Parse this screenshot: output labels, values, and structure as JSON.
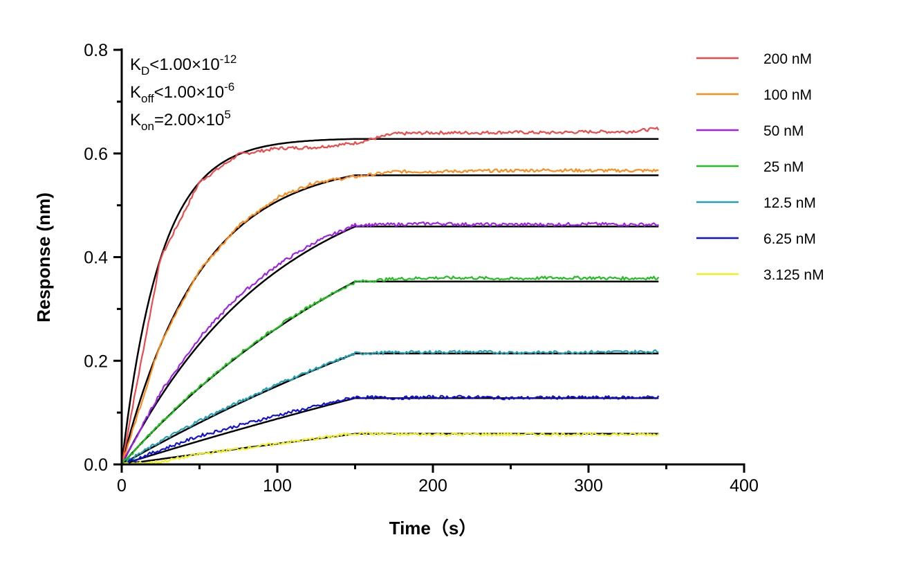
{
  "chart_data": {
    "type": "line",
    "xlabel": "Time（s）",
    "ylabel": "Response (nm)",
    "xlim": [
      0,
      400
    ],
    "ylim": [
      0,
      0.8
    ],
    "xticks": [
      "0",
      "100",
      "200",
      "300",
      "400"
    ],
    "yticks": [
      "0.0",
      "0.2",
      "0.4",
      "0.6",
      "0.8"
    ],
    "grid": false,
    "legend_position": "right",
    "annotations": {
      "kd": {
        "base": "K",
        "sub": "D",
        "rel": "<1.00×10",
        "exp": "-12"
      },
      "koff": {
        "base": "K",
        "sub": "off",
        "rel": "<1.00×10",
        "exp": "-6"
      },
      "kon": {
        "base": "K",
        "sub": "on",
        "rel": "=2.00×10",
        "exp": "5"
      }
    },
    "fit": {
      "kon": 200000,
      "koff": 1e-06,
      "association_end": 150,
      "end": 345,
      "color": "#000000"
    },
    "x": [
      0,
      25,
      50,
      75,
      100,
      125,
      150,
      175,
      200,
      225,
      250,
      275,
      300,
      325,
      345
    ],
    "series": [
      {
        "name": "200 nM",
        "conc_nM": 200,
        "color": "#f04848",
        "fit_plateau": 0.628,
        "values": [
          0,
          0.398,
          0.545,
          0.598,
          0.61,
          0.612,
          0.62,
          0.638,
          0.64,
          0.64,
          0.641,
          0.64,
          0.642,
          0.642,
          0.648
        ]
      },
      {
        "name": "100 nM",
        "conc_nM": 100,
        "color": "#ff8c1a",
        "fit_plateau": 0.558,
        "values": [
          0,
          0.235,
          0.375,
          0.46,
          0.515,
          0.545,
          0.555,
          0.565,
          0.565,
          0.566,
          0.567,
          0.568,
          0.567,
          0.567,
          0.567
        ]
      },
      {
        "name": "50 nM",
        "conc_nM": 50,
        "color": "#a020f0",
        "fit_plateau": 0.459,
        "values": [
          0,
          0.14,
          0.245,
          0.325,
          0.385,
          0.43,
          0.462,
          0.463,
          0.465,
          0.463,
          0.463,
          0.463,
          0.464,
          0.463,
          0.463
        ]
      },
      {
        "name": "25 nM",
        "conc_nM": 25,
        "color": "#20c020",
        "fit_plateau": 0.353,
        "values": [
          0,
          0.08,
          0.15,
          0.212,
          0.266,
          0.313,
          0.352,
          0.358,
          0.36,
          0.36,
          0.358,
          0.36,
          0.36,
          0.359,
          0.36
        ]
      },
      {
        "name": "12.5 nM",
        "conc_nM": 12.5,
        "color": "#20a0b0",
        "fit_plateau": 0.214,
        "values": [
          0,
          0.045,
          0.085,
          0.12,
          0.155,
          0.185,
          0.214,
          0.216,
          0.217,
          0.217,
          0.216,
          0.216,
          0.217,
          0.217,
          0.218
        ]
      },
      {
        "name": "6.25 nM",
        "conc_nM": 6.25,
        "color": "#1010e0",
        "fit_plateau": 0.128,
        "values": [
          0,
          0.028,
          0.055,
          0.075,
          0.095,
          0.112,
          0.13,
          0.128,
          0.13,
          0.13,
          0.128,
          0.129,
          0.129,
          0.129,
          0.13
        ]
      },
      {
        "name": "3.125 nM",
        "conc_nM": 3.125,
        "color": "#f0f020",
        "fit_plateau": 0.059,
        "values": [
          0,
          0.005,
          0.02,
          0.03,
          0.04,
          0.05,
          0.06,
          0.058,
          0.058,
          0.058,
          0.058,
          0.058,
          0.058,
          0.058,
          0.058
        ]
      }
    ]
  }
}
